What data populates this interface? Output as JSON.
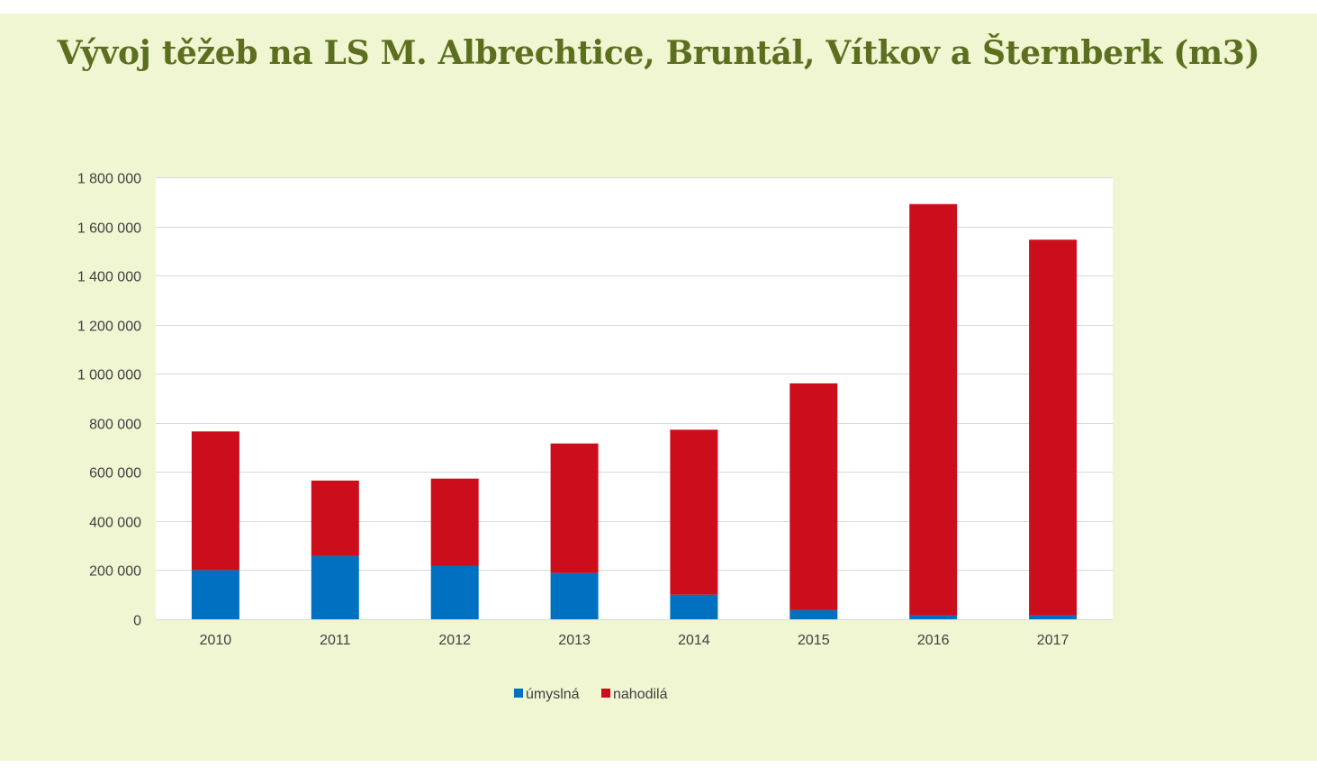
{
  "chart_data": {
    "type": "bar",
    "stacked": true,
    "title": "Vývoj těžeb na LS M. Albrechtice, Bruntál, Vítkov a Šternberk (m3)",
    "categories": [
      "2010",
      "2011",
      "2012",
      "2013",
      "2014",
      "2015",
      "2016",
      "2017"
    ],
    "series": [
      {
        "name": "úmyslná",
        "color": "#0070c0",
        "values": [
          200000,
          258000,
          218000,
          188000,
          100000,
          38000,
          15000,
          15000
        ]
      },
      {
        "name": "nahodilá",
        "color": "#cc0e1c",
        "values": [
          565000,
          307000,
          355000,
          528000,
          672000,
          923000,
          1676000,
          1531000
        ]
      }
    ],
    "ylim": [
      0,
      1800000
    ],
    "yticks": [
      0,
      200000,
      400000,
      600000,
      800000,
      1000000,
      1200000,
      1400000,
      1600000,
      1800000
    ],
    "ytick_labels": [
      "0",
      "200 000",
      "400 000",
      "600 000",
      "800 000",
      "1 000 000",
      "1 200 000",
      "1 400 000",
      "1 600 000",
      "1 800 000"
    ],
    "grid": true,
    "legend_position": "bottom"
  }
}
